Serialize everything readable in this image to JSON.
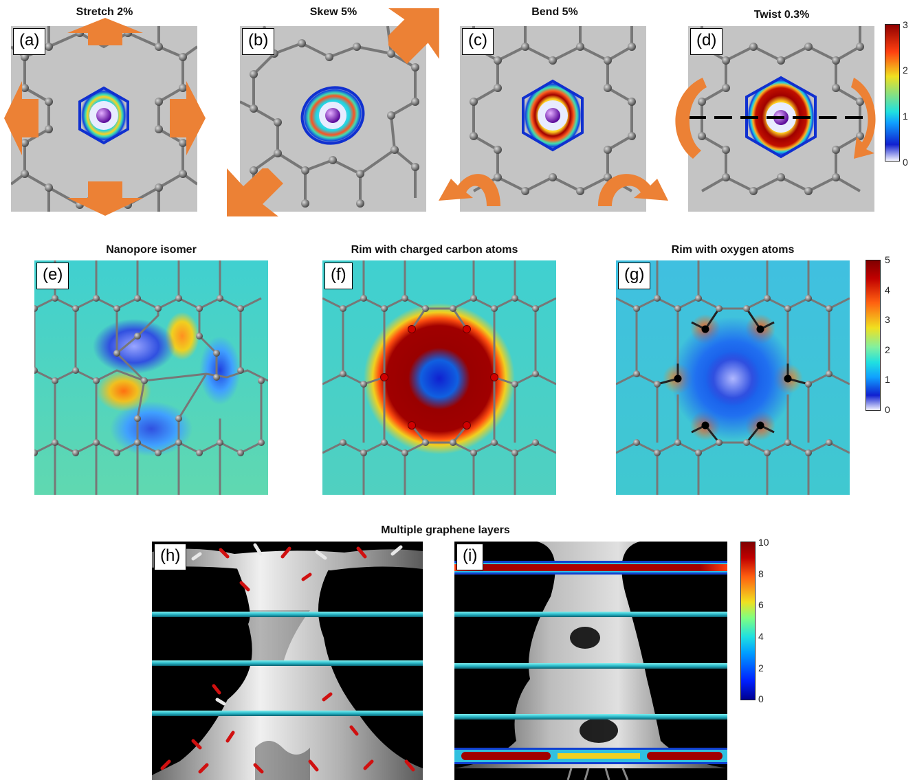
{
  "panels": {
    "a": {
      "label": "(a)",
      "title": "Stretch 2%"
    },
    "b": {
      "label": "(b)",
      "title": "Skew 5%"
    },
    "c": {
      "label": "(c)",
      "title": "Bend 5%"
    },
    "d": {
      "label": "(d)",
      "title": "Twist 0.3%"
    },
    "e": {
      "label": "(e)",
      "title": "Nanopore isomer"
    },
    "f": {
      "label": "(f)",
      "title": "Rim with charged carbon atoms"
    },
    "g": {
      "label": "(g)",
      "title": "Rim with oxygen atoms"
    },
    "h": {
      "label": "(h)"
    },
    "i": {
      "label": "(i)"
    }
  },
  "section_title": "Multiple graphene layers",
  "colorbars": {
    "top": {
      "ticks": [
        "3",
        "2",
        "1",
        "0"
      ]
    },
    "middle": {
      "ticks": [
        "5",
        "4",
        "3",
        "2",
        "1",
        "0"
      ]
    },
    "bottom": {
      "ticks": [
        "10",
        "8",
        "6",
        "4",
        "2",
        "0"
      ]
    }
  },
  "colors": {
    "arrow": "#ec8135",
    "background_gray": "#c4c4c4",
    "atom": "#6f6f6f",
    "ion": "#8a2be2",
    "graphene_layer": "#3ad7e0"
  }
}
